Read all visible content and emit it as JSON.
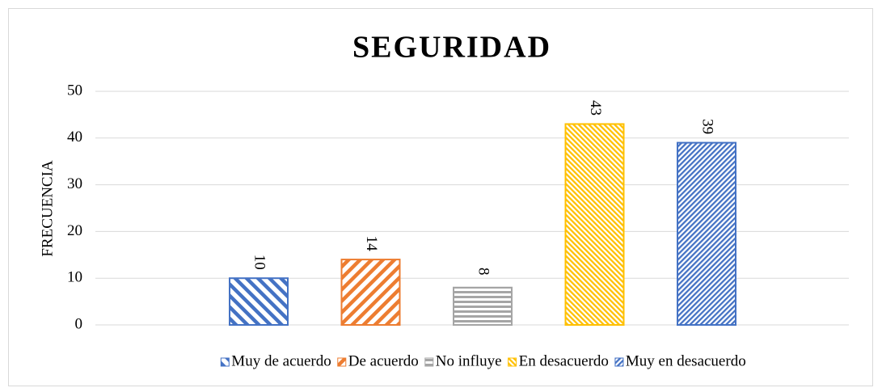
{
  "chart_data": {
    "type": "bar",
    "title": "SEGURIDAD",
    "y_label": "FRECUENCIA",
    "categories": [
      null
    ],
    "series": [
      {
        "name": "Muy de acuerdo",
        "color": "#4472c4",
        "pattern": "wide-downward-diagonal",
        "values": [
          10
        ]
      },
      {
        "name": "De acuerdo",
        "color": "#ed7d31",
        "pattern": "wide-upward-diagonal",
        "values": [
          14
        ]
      },
      {
        "name": "No influye",
        "color": "#a5a5a5",
        "pattern": "horizontal",
        "values": [
          8
        ]
      },
      {
        "name": "En desacuerdo",
        "color": "#ffc000",
        "pattern": "dense-downward-diagonal",
        "values": [
          43
        ]
      },
      {
        "name": "Muy en desacuerdo",
        "color": "#4472c4",
        "pattern": "dense-upward-diagonal",
        "values": [
          39
        ]
      }
    ],
    "ylim": [
      0,
      50
    ],
    "yticks": [
      0,
      10,
      20,
      30,
      40,
      50
    ],
    "grid": true,
    "legend": "bottom",
    "data_labels": true
  }
}
